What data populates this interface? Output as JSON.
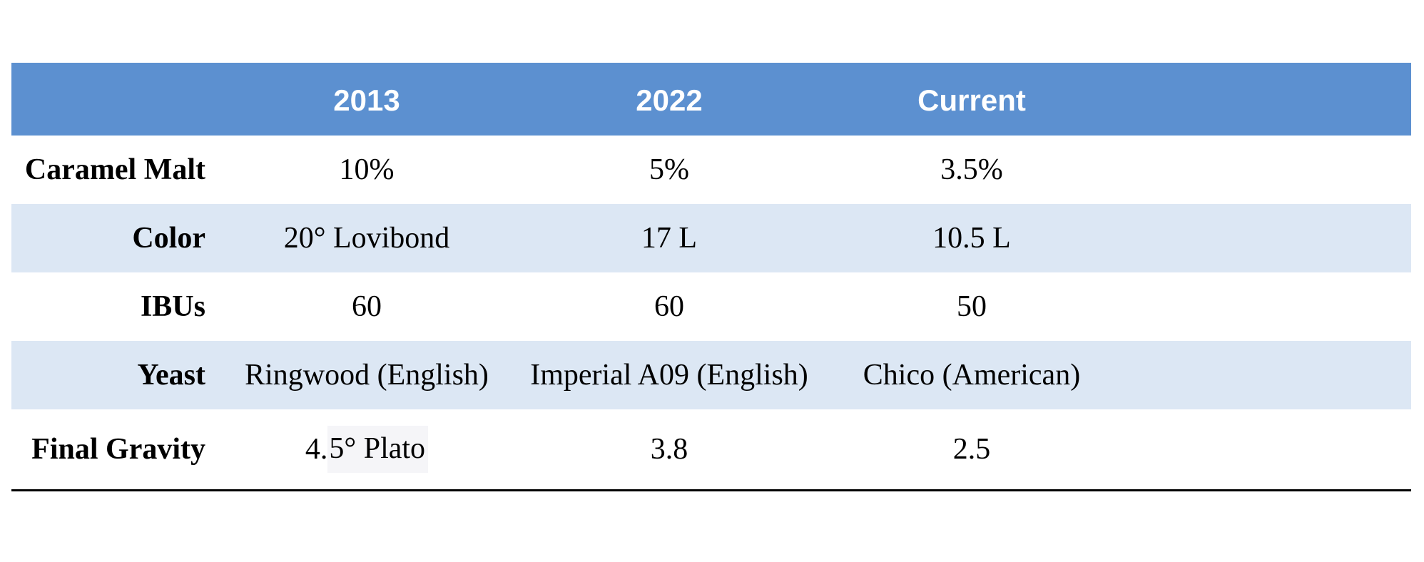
{
  "page": {
    "background": "#ffffff"
  },
  "table": {
    "header": {
      "background": "#5C90D0",
      "text_color": "#ffffff",
      "columns": [
        "",
        "2013",
        "2022",
        "Current",
        ""
      ]
    },
    "band_color": "#DCE7F4",
    "border_bottom_color": "#000000",
    "rows": [
      {
        "label": "Caramel Malt",
        "values": [
          "10%",
          "5%",
          "3.5%"
        ]
      },
      {
        "label": "Color",
        "values": [
          "20° Lovibond",
          "17 L",
          "10.5 L"
        ]
      },
      {
        "label": "IBUs",
        "values": [
          "60",
          "60",
          "50"
        ]
      },
      {
        "label": "Yeast",
        "values": [
          "Ringwood (English)",
          "Imperial A09 (English)",
          "Chico (American)"
        ]
      },
      {
        "label": "Final Gravity",
        "values": [
          "4.5° Plato",
          "3.8",
          "2.5"
        ]
      }
    ],
    "final_gravity_2013_cell": {
      "prefix": "4.",
      "highlighted_text": "5° Plato"
    }
  },
  "chart_data": {
    "type": "table",
    "columns": [
      "",
      "2013",
      "2022",
      "Current"
    ],
    "rows": [
      [
        "Caramel Malt",
        "10%",
        "5%",
        "3.5%"
      ],
      [
        "Color",
        "20° Lovibond",
        "17 L",
        "10.5 L"
      ],
      [
        "IBUs",
        "60",
        "60",
        "50"
      ],
      [
        "Yeast",
        "Ringwood (English)",
        "Imperial A09 (English)",
        "Chico (American)"
      ],
      [
        "Final Gravity",
        "4.5° Plato",
        "3.8",
        "2.5"
      ]
    ],
    "title": "",
    "header_background": "#5C90D0",
    "band_color": "#DCE7F4",
    "layout_hints": {
      "row_labels_bold_right_aligned": true,
      "values_centered": true,
      "empty_trailing_column": true,
      "bottom_rule": true
    }
  }
}
